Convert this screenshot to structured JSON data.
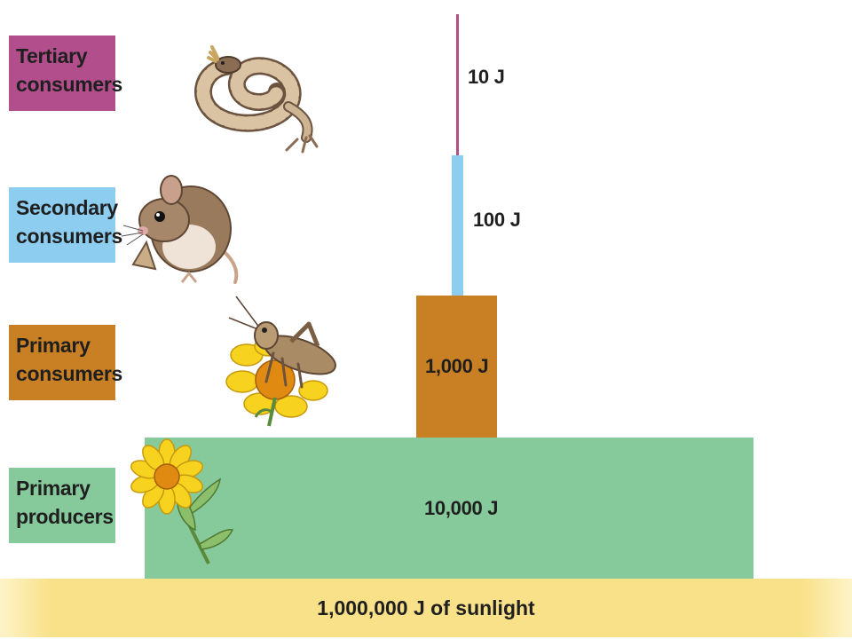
{
  "colors": {
    "tertiary": "#b14e8b",
    "secondary": "#8dcdf0",
    "primary_consumers": "#c97f24",
    "primary_producers": "#86c99b",
    "sunlight": "#f8e188",
    "text": "#1f1f1f"
  },
  "levels": {
    "tertiary": {
      "line1": "Tertiary",
      "line2": "consumers",
      "energy": "10 J",
      "energy_value": 10,
      "icon": "rattlesnake-icon"
    },
    "secondary": {
      "line1": "Secondary",
      "line2": "consumers",
      "energy": "100 J",
      "energy_value": 100,
      "icon": "mouse-icon"
    },
    "primary_consumers": {
      "line1": "Primary",
      "line2": "consumers",
      "energy": "1,000 J",
      "energy_value": 1000,
      "icon": "grasshopper-icon"
    },
    "primary_producers": {
      "line1": "Primary",
      "line2": "producers",
      "energy": "10,000 J",
      "energy_value": 10000,
      "icon": "flower-plant-icon"
    }
  },
  "sunlight": {
    "label": "1,000,000 J of sunlight",
    "energy_value": 1000000
  }
}
